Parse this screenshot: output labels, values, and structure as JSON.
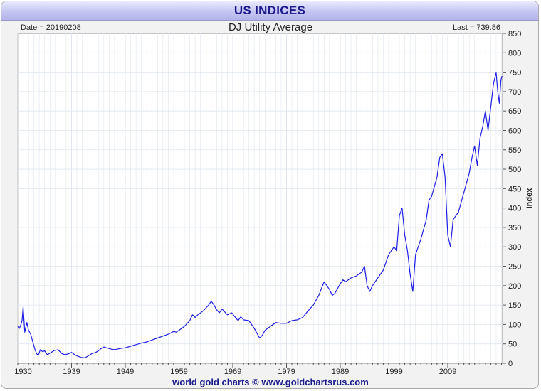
{
  "header": {
    "title": "US INDICES"
  },
  "info": {
    "date": "Date = 20190208",
    "last": "Last = 739.86"
  },
  "footer": {
    "credit": "world gold charts © www.goldchartsrus.com"
  },
  "colors": {
    "line": "#1f1fe6",
    "grid": "#dfe6ef",
    "banner_text": "#1b1b8c"
  },
  "chart_data": {
    "type": "line",
    "title": "DJ Utility Average",
    "xlabel": "",
    "ylabel": "Index",
    "xlim": [
      1929.0,
      2019.2
    ],
    "ylim": [
      0,
      850
    ],
    "x_ticks": [
      1930,
      1939,
      1949,
      1959,
      1969,
      1979,
      1989,
      1999,
      2009
    ],
    "y_ticks": [
      0,
      50,
      100,
      150,
      200,
      250,
      300,
      350,
      400,
      450,
      500,
      550,
      600,
      650,
      700,
      750,
      800,
      850
    ],
    "grid": true,
    "y_axis_side": "right",
    "series": [
      {
        "x": [
          1929.0,
          1929.3,
          1929.6,
          1929.8,
          1930.0,
          1930.3,
          1930.7,
          1931.0,
          1931.4,
          1931.8,
          1932.2,
          1932.5,
          1932.8,
          1933.2,
          1933.6,
          1934.0,
          1934.5,
          1935.2,
          1935.8,
          1936.5,
          1937.2,
          1937.8,
          1938.5,
          1939.0,
          1939.6,
          1940.2,
          1940.8,
          1941.5,
          1942.2,
          1942.8,
          1943.5,
          1944.0,
          1944.5,
          1945.0,
          1946.0,
          1946.5,
          1947.0,
          1948.0,
          1949.0,
          1950.0,
          1951.0,
          1952.0,
          1953.0,
          1954.0,
          1955.0,
          1956.0,
          1957.0,
          1958.0,
          1958.5,
          1959.5,
          1960.0,
          1961.0,
          1961.5,
          1962.0,
          1962.5,
          1963.5,
          1964.5,
          1965.0,
          1965.5,
          1966.0,
          1966.5,
          1967.0,
          1968.0,
          1968.8,
          1969.5,
          1970.0,
          1970.5,
          1971.0,
          1972.0,
          1973.0,
          1974.0,
          1974.5,
          1975.0,
          1976.0,
          1977.0,
          1978.0,
          1979.0,
          1980.0,
          1981.0,
          1982.0,
          1983.0,
          1984.0,
          1985.0,
          1986.0,
          1986.5,
          1987.0,
          1987.5,
          1988.0,
          1989.0,
          1989.5,
          1990.0,
          1991.0,
          1992.0,
          1993.0,
          1993.5,
          1994.0,
          1994.5,
          1995.0,
          1996.0,
          1997.0,
          1998.0,
          1999.0,
          1999.5,
          2000.0,
          2000.5,
          2001.0,
          2001.5,
          2002.0,
          2002.5,
          2003.0,
          2003.5,
          2004.0,
          2005.0,
          2005.5,
          2006.0,
          2007.0,
          2007.5,
          2008.0,
          2008.5,
          2009.0,
          2009.5,
          2010.0,
          2011.0,
          2012.0,
          2013.0,
          2013.5,
          2014.0,
          2014.5,
          2015.0,
          2015.5,
          2016.0,
          2016.5,
          2017.0,
          2017.5,
          2018.0,
          2018.3,
          2018.6,
          2018.9,
          2019.1
        ],
        "y": [
          95,
          90,
          100,
          110,
          145,
          80,
          105,
          85,
          75,
          55,
          35,
          25,
          20,
          35,
          30,
          32,
          22,
          28,
          33,
          35,
          25,
          22,
          25,
          28,
          22,
          18,
          15,
          14,
          20,
          25,
          28,
          32,
          38,
          42,
          38,
          36,
          35,
          38,
          40,
          44,
          48,
          52,
          55,
          60,
          65,
          70,
          75,
          82,
          80,
          90,
          95,
          110,
          125,
          118,
          125,
          135,
          150,
          160,
          150,
          138,
          130,
          140,
          125,
          130,
          118,
          110,
          120,
          112,
          110,
          90,
          65,
          72,
          85,
          95,
          105,
          103,
          103,
          110,
          112,
          118,
          135,
          150,
          175,
          210,
          200,
          190,
          175,
          180,
          205,
          215,
          210,
          220,
          225,
          235,
          250,
          200,
          185,
          200,
          220,
          240,
          280,
          300,
          290,
          380,
          400,
          330,
          290,
          230,
          185,
          280,
          300,
          320,
          370,
          420,
          430,
          480,
          530,
          540,
          480,
          330,
          300,
          370,
          390,
          440,
          490,
          530,
          560,
          510,
          580,
          610,
          650,
          600,
          660,
          720,
          750,
          700,
          670,
          730,
          740
        ]
      }
    ]
  }
}
